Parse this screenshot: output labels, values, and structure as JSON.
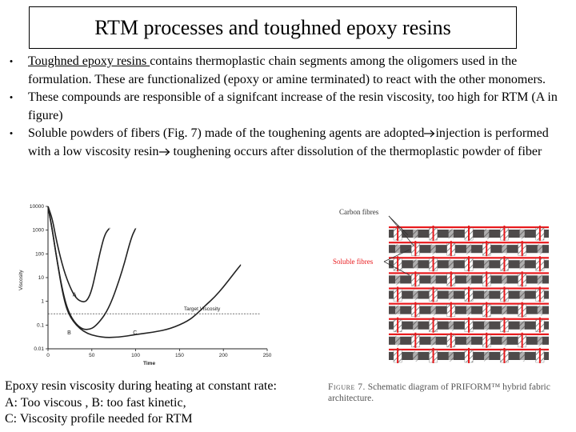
{
  "slide": {
    "title": "RTM processes and toughned epoxy resins",
    "bullets": [
      {
        "lead": "Toughned epoxy resins ",
        "text": "contains thermoplastic chain segments among the oligomers used in the formulation. These are functionalized (epoxy or amine terminated) to react with the other monomers."
      },
      {
        "text": "These compounds are responsible of a signifcant increase of the resin viscosity, too high for RTM (A in figure)"
      },
      {
        "part1": "Soluble powders of fibers (Fig. 7)  made of the toughening agents are adopted",
        "part2": "injection is performed with a low viscosity resin",
        "part3": " toughening occurs after dissolution of the thermoplastic powder of fiber"
      }
    ],
    "bullet_symbol": "•",
    "caption_lines": [
      "Epoxy resin viscosity during heating at constant rate:",
      "A: Too viscous , B: too fast kinetic,",
      "C: Viscosity profile needed for RTM"
    ]
  },
  "chart_data": {
    "type": "line",
    "title": "",
    "xlabel": "Time",
    "ylabel": "Viscosity",
    "yscale": "log",
    "xlim": [
      0,
      250
    ],
    "ylim": [
      0.01,
      10000
    ],
    "xticks": [
      "0",
      "50",
      "100",
      "150",
      "200",
      "250"
    ],
    "yticks": [
      "10000",
      "1000",
      "100",
      "10",
      "1",
      "0.1",
      "0.01"
    ],
    "reference_line": {
      "label": "Target Viscosity",
      "y": 0.3,
      "style": "dashed"
    },
    "series": [
      {
        "name": "A",
        "x": [
          0,
          5,
          10,
          18,
          25,
          32,
          40,
          45,
          50,
          55,
          60,
          65,
          70
        ],
        "y": [
          10000,
          3000,
          300,
          20,
          4,
          1.3,
          0.9,
          1.1,
          3,
          20,
          150,
          700,
          1200
        ]
      },
      {
        "name": "B",
        "x": [
          0,
          5,
          10,
          18,
          25,
          35,
          45,
          55,
          70,
          85,
          95,
          100
        ],
        "y": [
          10000,
          1000,
          60,
          1.5,
          0.25,
          0.08,
          0.06,
          0.09,
          0.5,
          20,
          500,
          1200
        ]
      },
      {
        "name": "C",
        "x": [
          0,
          5,
          10,
          18,
          25,
          40,
          60,
          80,
          100,
          120,
          140,
          160,
          170,
          180,
          190,
          200,
          210,
          220
        ],
        "y": [
          10000,
          1000,
          60,
          1.2,
          0.2,
          0.05,
          0.03,
          0.03,
          0.04,
          0.05,
          0.07,
          0.15,
          0.3,
          0.7,
          1.5,
          4,
          12,
          35
        ]
      }
    ]
  },
  "fabric_figure": {
    "label_carbon": "Carbon fibres",
    "label_soluble": "Soluble fibres",
    "caption_fig": "Figure 7.",
    "caption_text": " Schematic diagram of PRIFORM™ hybrid fabric architecture.",
    "colors": {
      "soluble": "#e8191c",
      "carbon": "#4e4a4a",
      "hatch": "#8a8a8a"
    }
  }
}
